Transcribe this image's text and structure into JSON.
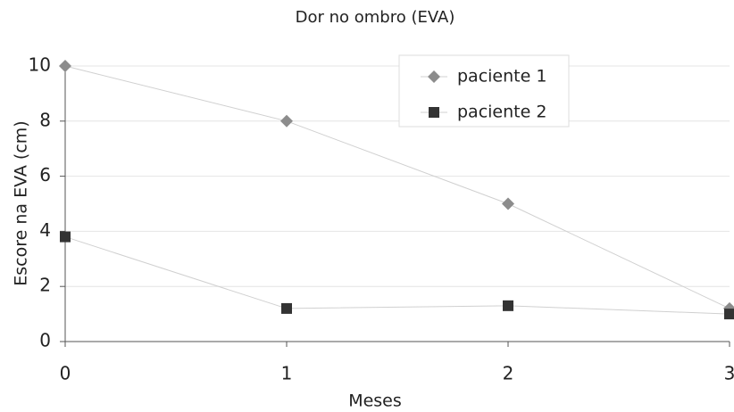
{
  "chart_data": {
    "type": "line",
    "title": "Dor no ombro (EVA)",
    "xlabel": "Meses",
    "ylabel": "Escore na EVA (cm)",
    "x": [
      0,
      1,
      2,
      3
    ],
    "series": [
      {
        "name": "paciente 1",
        "color": "#8c8c8c",
        "marker": "diamond",
        "values": [
          10,
          8,
          5,
          1.2
        ]
      },
      {
        "name": "paciente 2",
        "color": "#333333",
        "marker": "square",
        "values": [
          3.8,
          1.2,
          1.3,
          1.0
        ]
      }
    ],
    "xlim": [
      0,
      3
    ],
    "xticks": [
      0,
      1,
      2,
      3
    ],
    "ylim": [
      0,
      10
    ],
    "yticks": [
      0,
      2,
      4,
      6,
      8,
      10
    ],
    "grid": true,
    "legend": "upper right"
  }
}
